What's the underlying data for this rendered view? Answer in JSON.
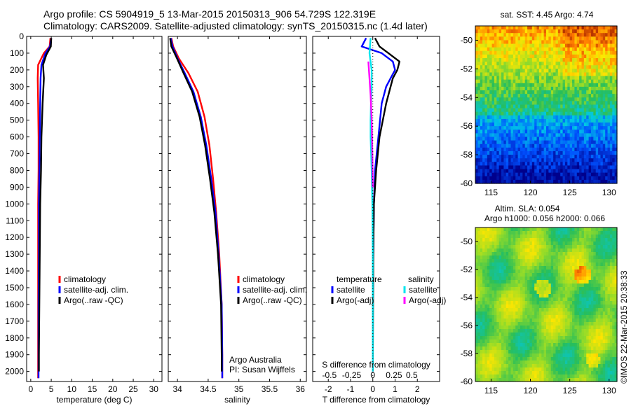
{
  "header": {
    "line1": "Argo profile: CS 5904919_5 13-Mar-2015 20150313_906 54.729S 122.319E",
    "line2": "Climatology: CARS2009. Satellite-adjusted climatology: synTS_20150315.nc (1.4d later)"
  },
  "colors": {
    "climatology": "#ff0000",
    "satellite": "#0000ff",
    "argo": "#000000",
    "sal_satellite": "#00e5ee",
    "sal_argo": "#ff00ff"
  },
  "depth_axis": {
    "ticks": [
      0,
      100,
      200,
      300,
      400,
      500,
      600,
      700,
      800,
      900,
      1000,
      1100,
      1200,
      1300,
      1400,
      1500,
      1600,
      1700,
      1800,
      1900,
      2000
    ],
    "ylim": [
      0,
      2060
    ]
  },
  "chart_data": [
    {
      "type": "line",
      "id": "temperature",
      "xlabel": "temperature (deg C)",
      "xlim": [
        -1,
        32
      ],
      "xticks": [
        0,
        5,
        10,
        15,
        20,
        25,
        30
      ],
      "legend": [
        "climatology",
        "satellite-adj. clim.",
        "Argo(..raw -QC)"
      ],
      "series": [
        {
          "name": "climatology",
          "color": "#ff0000",
          "x": [
            4.8,
            4.6,
            3.2,
            1.8,
            1.7,
            1.8,
            1.9,
            1.9,
            1.8,
            1.8,
            1.8,
            1.8,
            1.8
          ],
          "y": [
            10,
            60,
            100,
            170,
            250,
            400,
            600,
            800,
            1000,
            1300,
            1600,
            1900,
            2040
          ]
        },
        {
          "name": "satellite-adj. clim.",
          "color": "#0000ff",
          "x": [
            5.0,
            4.7,
            3.6,
            2.6,
            2.4,
            2.3,
            2.2,
            2.1,
            2.0,
            2.0,
            1.9,
            1.9,
            1.9
          ],
          "y": [
            10,
            60,
            100,
            170,
            250,
            400,
            600,
            800,
            1000,
            1300,
            1600,
            1900,
            2040
          ]
        },
        {
          "name": "Argo(..raw -QC)",
          "color": "#000000",
          "x": [
            5.0,
            4.9,
            3.8,
            3.0,
            3.2,
            2.9,
            2.6,
            2.5,
            2.3,
            2.2,
            2.1,
            2.0,
            2.0
          ],
          "y": [
            10,
            60,
            110,
            170,
            250,
            400,
            600,
            800,
            1000,
            1300,
            1600,
            1900,
            2000
          ]
        }
      ]
    },
    {
      "type": "line",
      "id": "salinity",
      "xlabel": "salinity",
      "xlim": [
        33.85,
        36.1
      ],
      "xticks": [
        34,
        34.5,
        35,
        35.5,
        36
      ],
      "legend": [
        "climatology",
        "satellite-adj. clim.",
        "Argo(..raw -QC)"
      ],
      "series": [
        {
          "name": "climatology",
          "color": "#ff0000",
          "x": [
            33.9,
            33.93,
            34.02,
            34.18,
            34.33,
            34.44,
            34.52,
            34.58,
            34.63,
            34.68,
            34.72,
            34.73,
            34.73
          ],
          "y": [
            10,
            60,
            130,
            220,
            330,
            480,
            650,
            850,
            1050,
            1300,
            1600,
            1900,
            2040
          ]
        },
        {
          "name": "satellite-adj. clim.",
          "color": "#0000ff",
          "x": [
            33.89,
            33.92,
            34.0,
            34.12,
            34.26,
            34.38,
            34.47,
            34.55,
            34.62,
            34.67,
            34.72,
            34.73,
            34.73
          ],
          "y": [
            10,
            60,
            130,
            220,
            330,
            480,
            650,
            850,
            1050,
            1300,
            1600,
            1900,
            2040
          ]
        },
        {
          "name": "Argo(..raw -QC)",
          "color": "#000000",
          "x": [
            33.88,
            33.9,
            33.99,
            34.1,
            34.24,
            34.36,
            34.45,
            34.53,
            34.6,
            34.66,
            34.71,
            34.72,
            34.72
          ],
          "y": [
            10,
            60,
            130,
            220,
            330,
            480,
            650,
            850,
            1050,
            1300,
            1600,
            1900,
            2000
          ]
        }
      ],
      "annotation": {
        "line1": "Argo Australia",
        "line2": "PI: Susan Wijffels"
      }
    },
    {
      "type": "line",
      "id": "difference",
      "xlabel": "T difference from climatology",
      "xlim": [
        -2.7,
        3.0
      ],
      "xticks": [
        -2,
        -1,
        0,
        1,
        2
      ],
      "top_label": "S difference from climatology",
      "top_ticks": [
        "-0.5",
        "-0.25",
        "0",
        "0.25",
        "0.5"
      ],
      "legend": {
        "temperature_title": "temperature",
        "salinity_title": "salinity",
        "temperature": [
          "satellite",
          "Argo(-adj)"
        ],
        "salinity": [
          "satellite",
          "Argo(-adj)"
        ]
      },
      "series": [
        {
          "name": "T satellite",
          "color": "#0000ff",
          "x": [
            -0.3,
            -0.5,
            0.4,
            0.9,
            1.0,
            0.8,
            0.6,
            0.4,
            0.25,
            0.1,
            0.05,
            0.02,
            0.0,
            0.0
          ],
          "y": [
            10,
            60,
            100,
            150,
            200,
            250,
            300,
            400,
            600,
            800,
            1000,
            1300,
            1600,
            2000
          ]
        },
        {
          "name": "T Argo(-adj)",
          "color": "#000000",
          "x": [
            0.1,
            0.3,
            0.7,
            1.2,
            1.1,
            0.9,
            0.8,
            0.6,
            0.3,
            0.15,
            0.05,
            0.02,
            0.01,
            0.0
          ],
          "y": [
            10,
            60,
            100,
            150,
            200,
            250,
            300,
            400,
            600,
            800,
            1000,
            1300,
            1600,
            2000
          ]
        },
        {
          "name": "S satellite",
          "color": "#00e5ee",
          "x": [
            -0.1,
            -0.15,
            -0.05,
            -0.05,
            -0.08,
            -0.1,
            -0.1,
            -0.05,
            -0.02,
            0.0,
            0.0,
            0.0
          ],
          "y": [
            10,
            100,
            200,
            300,
            400,
            500,
            600,
            800,
            1000,
            1300,
            1600,
            2000
          ]
        },
        {
          "name": "S Argo(-adj)",
          "color": "#ff00ff",
          "x": [
            -0.2,
            -0.15,
            -0.1,
            -0.05,
            -0.02,
            0.0
          ],
          "y": [
            150,
            250,
            350,
            500,
            700,
            900
          ]
        }
      ]
    },
    {
      "type": "heatmap",
      "id": "sst_map",
      "title": "sat. SST: 4.45  Argo: 4.74",
      "xlim": [
        113,
        131
      ],
      "ylim": [
        -60,
        -49
      ],
      "xticks": [
        115,
        120,
        125,
        130
      ],
      "yticks": [
        -50,
        -52,
        -54,
        -56,
        -58,
        -60
      ]
    },
    {
      "type": "heatmap",
      "id": "sla_map",
      "title1": "Altim. SLA: 0.054",
      "title2": "Argo h1000: 0.056 h2000: 0.066",
      "xlim": [
        113,
        131
      ],
      "ylim": [
        -60,
        -49
      ],
      "xticks": [
        115,
        120,
        125,
        130
      ],
      "yticks": [
        -50,
        -52,
        -54,
        -56,
        -58,
        -60
      ]
    }
  ],
  "footer": {
    "stamp": "©IMOS 22-Mar-2015 20:38:33"
  }
}
